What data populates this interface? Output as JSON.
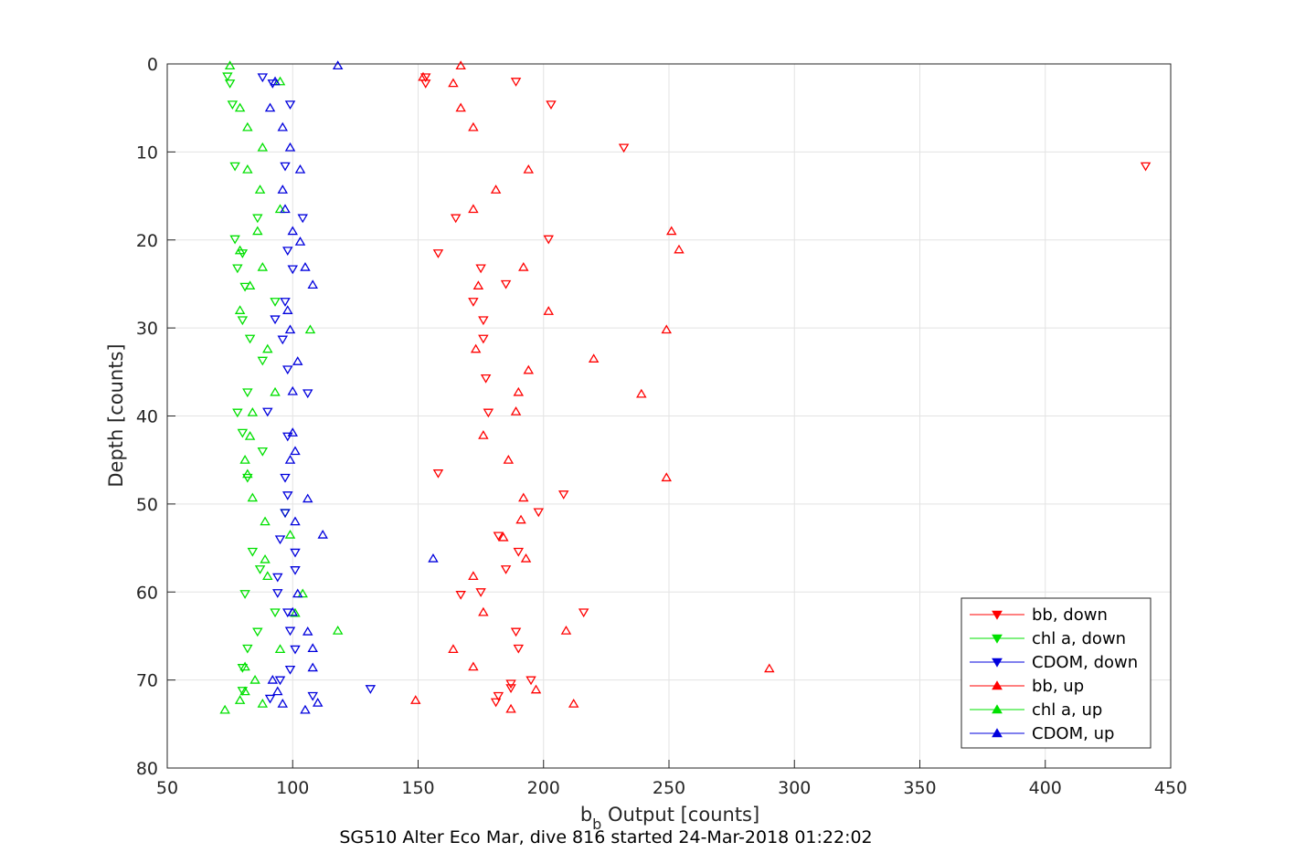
{
  "chart_data": {
    "type": "scatter",
    "title": "SG510 Alter Eco Mar, dive 816 started 24-Mar-2018 01:22:02",
    "xlabel_main": "b",
    "xlabel_sub": "b",
    "xlabel_rest": " Output [counts]",
    "ylabel": "Depth [counts]",
    "xlim": [
      50,
      450
    ],
    "ylim": [
      80,
      0
    ],
    "y_reversed": true,
    "xticks": [
      50,
      100,
      150,
      200,
      250,
      300,
      350,
      400,
      450
    ],
    "yticks": [
      0,
      10,
      20,
      30,
      40,
      50,
      60,
      70,
      80
    ],
    "grid": true,
    "legend_position": "bottom-right",
    "series": [
      {
        "name": "bb, down",
        "color": "#ff0000",
        "marker": "triangle-down",
        "points": [
          [
            153,
            1.5
          ],
          [
            153,
            2.2
          ],
          [
            189,
            2
          ],
          [
            203,
            4.6
          ],
          [
            232,
            9.5
          ],
          [
            440,
            11.6
          ],
          [
            165,
            17.5
          ],
          [
            202,
            19.9
          ],
          [
            158,
            21.5
          ],
          [
            175,
            23.2
          ],
          [
            185,
            25
          ],
          [
            172,
            27
          ],
          [
            176,
            29.1
          ],
          [
            176,
            31.2
          ],
          [
            177,
            35.7
          ],
          [
            178,
            39.6
          ],
          [
            158,
            46.5
          ],
          [
            208,
            48.9
          ],
          [
            198,
            50.9
          ],
          [
            182,
            53.6
          ],
          [
            190,
            55.4
          ],
          [
            185,
            57.4
          ],
          [
            167,
            60.3
          ],
          [
            175,
            60
          ],
          [
            216,
            62.3
          ],
          [
            189,
            64.5
          ],
          [
            190,
            66.4
          ],
          [
            195,
            70
          ],
          [
            187,
            70.4
          ],
          [
            187,
            70.9
          ],
          [
            182,
            71.8
          ],
          [
            181,
            72.5
          ]
        ]
      },
      {
        "name": "chl a, down",
        "color": "#00e000",
        "marker": "triangle-down",
        "points": [
          [
            74,
            1.4
          ],
          [
            75,
            2.2
          ],
          [
            76,
            4.6
          ],
          [
            77,
            11.6
          ],
          [
            86,
            17.5
          ],
          [
            77,
            19.9
          ],
          [
            80,
            21.5
          ],
          [
            78,
            23.2
          ],
          [
            81,
            25.3
          ],
          [
            93,
            27
          ],
          [
            80,
            29.1
          ],
          [
            83,
            31.2
          ],
          [
            88,
            33.7
          ],
          [
            82,
            37.3
          ],
          [
            78,
            39.6
          ],
          [
            80,
            41.9
          ],
          [
            88,
            44
          ],
          [
            82,
            47
          ],
          [
            97,
            51
          ],
          [
            84,
            55.4
          ],
          [
            87,
            57.4
          ],
          [
            81,
            60.2
          ],
          [
            93,
            62.3
          ],
          [
            86,
            64.5
          ],
          [
            82,
            66.4
          ],
          [
            80,
            68.6
          ],
          [
            80,
            71.2
          ]
        ]
      },
      {
        "name": "CDOM, down",
        "color": "#0000dd",
        "marker": "triangle-down",
        "points": [
          [
            88,
            1.5
          ],
          [
            92,
            2.2
          ],
          [
            99,
            4.6
          ],
          [
            97,
            11.6
          ],
          [
            104,
            17.5
          ],
          [
            98,
            21.2
          ],
          [
            100,
            23.3
          ],
          [
            97,
            27
          ],
          [
            93,
            29
          ],
          [
            96,
            31.3
          ],
          [
            98,
            34.7
          ],
          [
            106,
            37.4
          ],
          [
            90,
            39.5
          ],
          [
            98,
            42.3
          ],
          [
            97,
            47
          ],
          [
            98,
            49
          ],
          [
            97,
            51
          ],
          [
            95,
            54
          ],
          [
            101,
            55.5
          ],
          [
            101,
            57.5
          ],
          [
            94,
            58.3
          ],
          [
            94,
            60.1
          ],
          [
            98,
            62.3
          ],
          [
            99,
            64.4
          ],
          [
            101,
            66.5
          ],
          [
            99,
            68.8
          ],
          [
            95,
            70
          ],
          [
            131,
            71
          ],
          [
            108,
            71.8
          ],
          [
            91,
            72.1
          ]
        ]
      },
      {
        "name": "bb, up",
        "color": "#ff0000",
        "marker": "triangle-up",
        "points": [
          [
            167,
            0.2
          ],
          [
            152,
            1.5
          ],
          [
            164,
            2.2
          ],
          [
            167,
            5
          ],
          [
            172,
            7.2
          ],
          [
            194,
            12
          ],
          [
            181,
            14.3
          ],
          [
            172,
            16.5
          ],
          [
            251,
            19
          ],
          [
            254,
            21.1
          ],
          [
            192,
            23.1
          ],
          [
            174,
            25.2
          ],
          [
            202,
            28.1
          ],
          [
            249,
            30.2
          ],
          [
            173,
            32.4
          ],
          [
            220,
            33.5
          ],
          [
            194,
            34.8
          ],
          [
            239,
            37.5
          ],
          [
            190,
            37.3
          ],
          [
            189,
            39.5
          ],
          [
            176,
            42.2
          ],
          [
            186,
            45
          ],
          [
            249,
            47
          ],
          [
            192,
            49.3
          ],
          [
            191,
            51.8
          ],
          [
            184,
            53.8
          ],
          [
            193,
            56.2
          ],
          [
            172,
            58.2
          ],
          [
            176,
            62.3
          ],
          [
            209,
            64.4
          ],
          [
            164,
            66.5
          ],
          [
            172,
            68.5
          ],
          [
            290,
            68.7
          ],
          [
            197,
            71.1
          ],
          [
            149,
            72.3
          ],
          [
            212,
            72.7
          ],
          [
            187,
            73.3
          ]
        ]
      },
      {
        "name": "chl a, up",
        "color": "#00e000",
        "marker": "triangle-up",
        "points": [
          [
            75,
            0.2
          ],
          [
            95,
            2
          ],
          [
            79,
            5
          ],
          [
            82,
            7.2
          ],
          [
            88,
            9.5
          ],
          [
            82,
            12
          ],
          [
            87,
            14.3
          ],
          [
            95,
            16.5
          ],
          [
            86,
            19
          ],
          [
            79,
            21.2
          ],
          [
            88,
            23.1
          ],
          [
            83,
            25.2
          ],
          [
            79,
            28
          ],
          [
            107,
            30.2
          ],
          [
            90,
            32.4
          ],
          [
            93,
            37.3
          ],
          [
            84,
            39.6
          ],
          [
            83,
            42.3
          ],
          [
            81,
            45
          ],
          [
            82,
            46.6
          ],
          [
            84,
            49.3
          ],
          [
            89,
            52
          ],
          [
            99,
            53.5
          ],
          [
            89,
            56.3
          ],
          [
            90,
            58.2
          ],
          [
            104,
            60.2
          ],
          [
            101,
            62.4
          ],
          [
            118,
            64.4
          ],
          [
            95,
            66.5
          ],
          [
            81,
            68.5
          ],
          [
            85,
            70
          ],
          [
            81,
            71.3
          ],
          [
            79,
            72.3
          ],
          [
            88,
            72.7
          ],
          [
            73,
            73.4
          ]
        ]
      },
      {
        "name": "CDOM, up",
        "color": "#0000dd",
        "marker": "triangle-up",
        "points": [
          [
            118,
            0.2
          ],
          [
            93,
            2
          ],
          [
            91,
            5
          ],
          [
            96,
            7.2
          ],
          [
            99,
            9.5
          ],
          [
            103,
            12
          ],
          [
            96,
            14.3
          ],
          [
            97,
            16.5
          ],
          [
            100,
            19
          ],
          [
            103,
            20.2
          ],
          [
            105,
            23.1
          ],
          [
            108,
            25.1
          ],
          [
            98,
            28
          ],
          [
            99,
            30.2
          ],
          [
            102,
            33.8
          ],
          [
            100,
            37.2
          ],
          [
            100,
            41.9
          ],
          [
            101,
            44
          ],
          [
            99,
            45
          ],
          [
            106,
            49.4
          ],
          [
            101,
            52
          ],
          [
            112,
            53.5
          ],
          [
            156,
            56.2
          ],
          [
            102,
            60.2
          ],
          [
            100,
            62.3
          ],
          [
            106,
            64.5
          ],
          [
            108,
            66.4
          ],
          [
            108,
            68.6
          ],
          [
            92,
            70
          ],
          [
            94,
            71.3
          ],
          [
            110,
            72.6
          ],
          [
            96,
            72.7
          ],
          [
            105,
            73.4
          ]
        ]
      }
    ]
  }
}
